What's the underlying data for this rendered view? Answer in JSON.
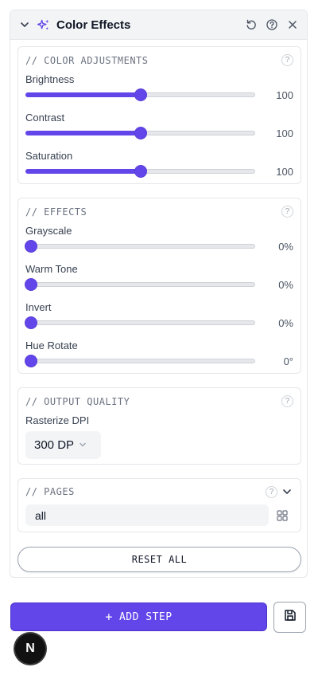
{
  "panel": {
    "title": "Color Effects",
    "icons": {
      "collapse": "chevron-down-icon",
      "effects": "sparkles-icon",
      "reset": "reset-icon",
      "help": "help-icon",
      "close": "close-icon"
    }
  },
  "color_adjustments": {
    "title": "// COLOR ADJUSTMENTS",
    "help_glyph": "?",
    "controls": [
      {
        "label": "Brightness",
        "value": "100",
        "level": 0.5
      },
      {
        "label": "Contrast",
        "value": "100",
        "level": 0.5
      },
      {
        "label": "Saturation",
        "value": "100",
        "level": 0.5
      }
    ]
  },
  "effects": {
    "title": "// EFFECTS",
    "help_glyph": "?",
    "controls": [
      {
        "label": "Grayscale",
        "value": "0%",
        "level": 0
      },
      {
        "label": "Warm Tone",
        "value": "0%",
        "level": 0
      },
      {
        "label": "Invert",
        "value": "0%",
        "level": 0
      },
      {
        "label": "Hue Rotate",
        "value": "0°",
        "level": 0
      }
    ]
  },
  "output_quality": {
    "title": "// OUTPUT QUALITY",
    "help_glyph": "?",
    "dpi_label": "Rasterize DPI",
    "dpi_value": "300 DP"
  },
  "pages": {
    "title": "// PAGES",
    "help_glyph": "?",
    "value": "all"
  },
  "actions": {
    "reset_all": "RESET ALL",
    "add_step": "ADD STEP",
    "add_glyph": "+",
    "fab_letter": "N"
  },
  "colors": {
    "accent": "#6246ea",
    "border": "#e5e7eb",
    "muted": "#6b7280"
  }
}
